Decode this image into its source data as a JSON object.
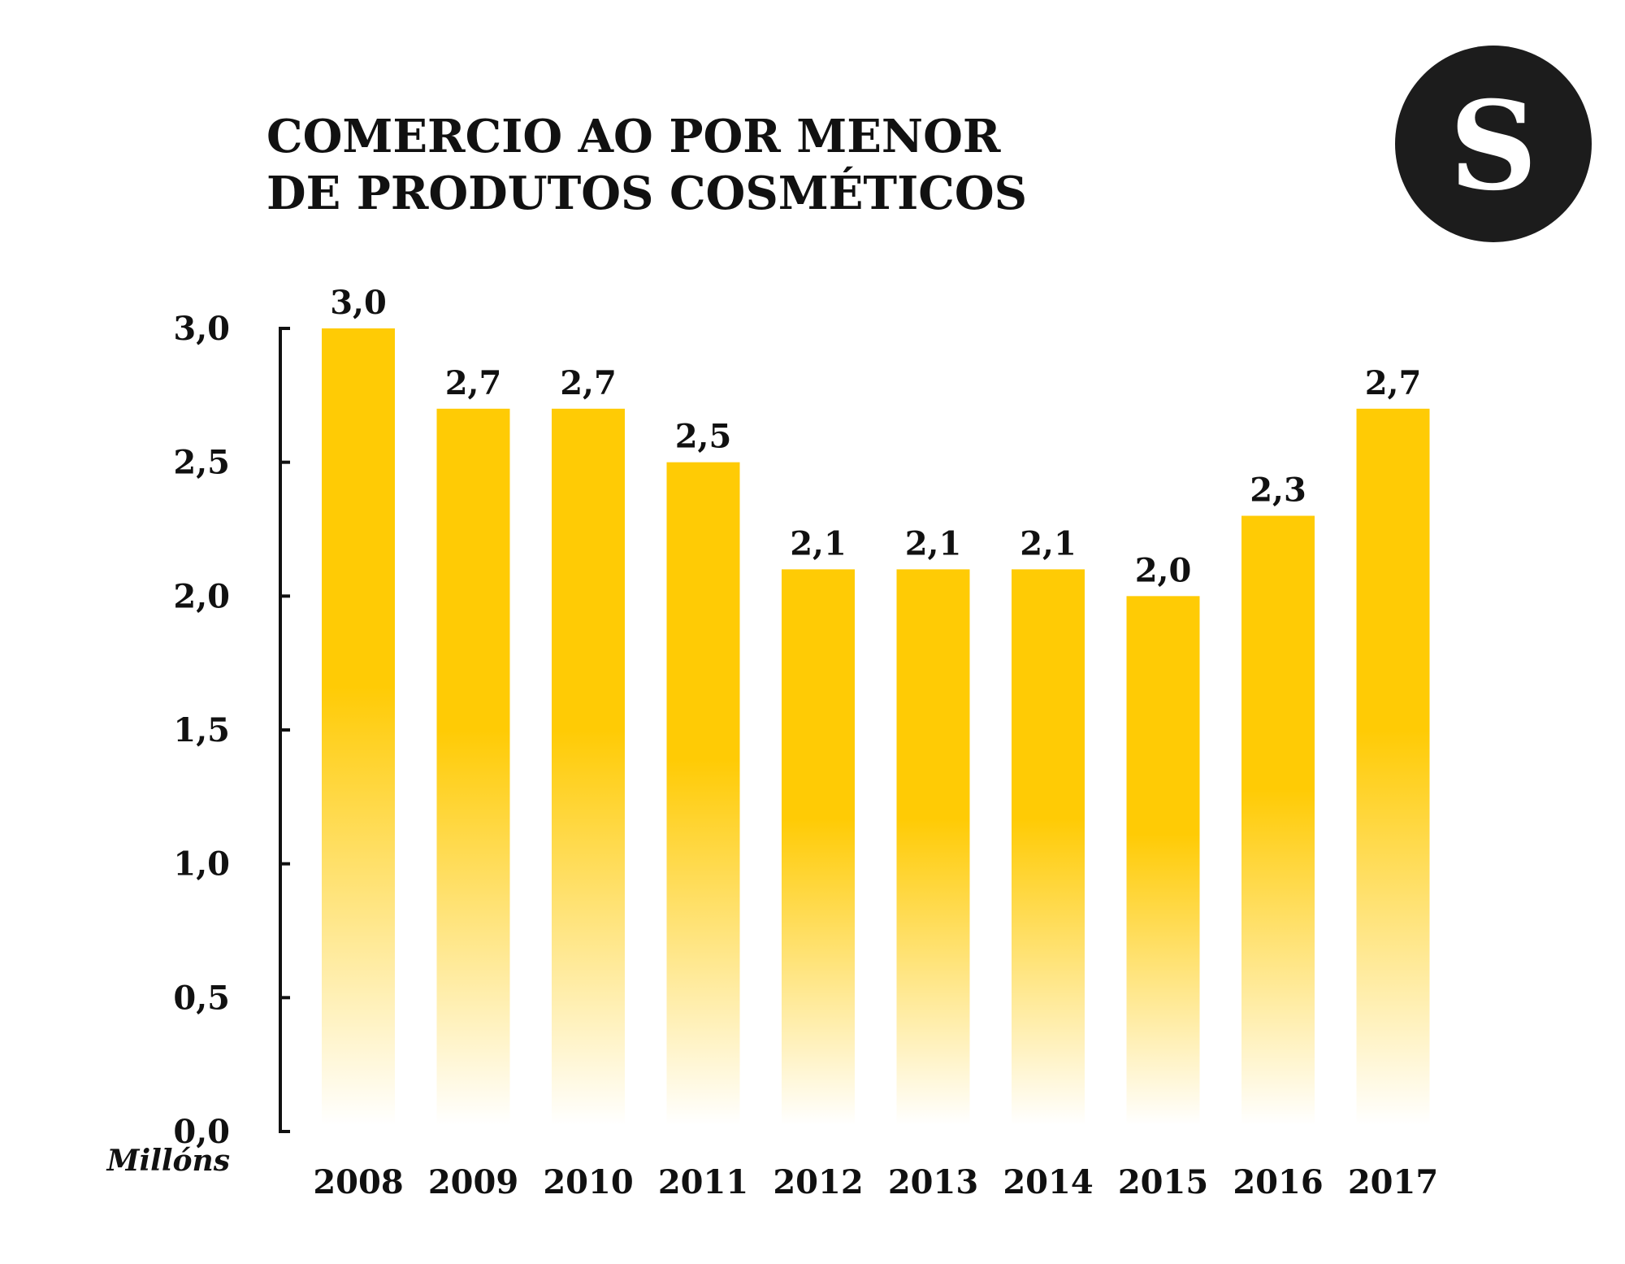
{
  "logo": {
    "letter": "S"
  },
  "colors": {
    "bar": "#FFCB05",
    "bar_fade": "#FFFFFF",
    "ink": "#111111",
    "logo_bg": "#1C1C1C"
  },
  "chart_data": {
    "type": "bar",
    "title": [
      "COMERCIO AO POR MENOR",
      "DE PRODUTOS COSMÉTICOS"
    ],
    "categories": [
      "2008",
      "2009",
      "2010",
      "2011",
      "2012",
      "2013",
      "2014",
      "2015",
      "2016",
      "2017"
    ],
    "values": [
      3.0,
      2.7,
      2.7,
      2.5,
      2.1,
      2.1,
      2.1,
      2.0,
      2.3,
      2.7
    ],
    "value_labels": [
      "3,0",
      "2,7",
      "2,7",
      "2,5",
      "2,1",
      "2,1",
      "2,1",
      "2,0",
      "2,3",
      "2,7"
    ],
    "yticks": [
      0.0,
      0.5,
      1.0,
      1.5,
      2.0,
      2.5,
      3.0
    ],
    "ytick_labels": [
      "0,0",
      "0,5",
      "1,0",
      "1,5",
      "2,0",
      "2,5",
      "3,0"
    ],
    "ylim": [
      0,
      3.0
    ],
    "xlabel": "",
    "ylabel": "Millóns",
    "grid": false,
    "legend": "none"
  }
}
